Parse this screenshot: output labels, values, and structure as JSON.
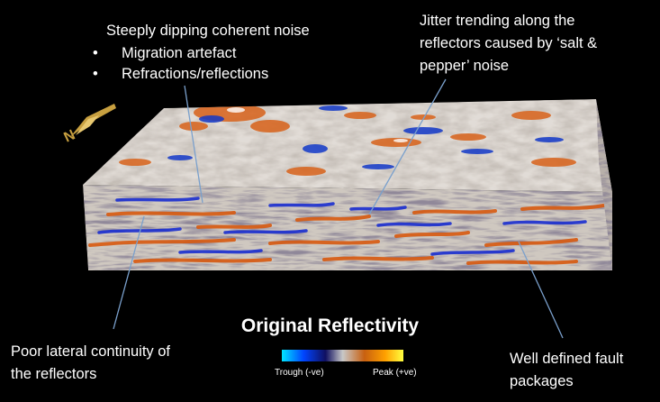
{
  "annotations": {
    "top_left_heading": "Steeply dipping  coherent noise",
    "top_left_bullets": [
      "Migration artefact",
      "Refractions/reflections"
    ],
    "top_right": [
      "Jitter trending along the",
      "reflectors caused by ‘salt &",
      "pepper’ noise"
    ],
    "bottom_left": [
      "Poor lateral continuity of",
      "the reflectors"
    ],
    "bottom_right": [
      "Well defined fault",
      "packages"
    ]
  },
  "title": "Original Reflectivity",
  "colorbar": {
    "left_label": "Trough (-ve)",
    "right_label": "Peak (+ve)",
    "colors": [
      "#00e5ff",
      "#0044ff",
      "#101060",
      "#c8c8c8",
      "#c86010",
      "#ffa000",
      "#ffff40"
    ]
  },
  "north_arrow": {
    "letter": "N",
    "color": "#c8a040"
  },
  "colors": {
    "pointer_line": "#7aa0cc",
    "trough": "#1030d0",
    "peak": "#d85a10",
    "noise_light": "#d8d2c8",
    "noise_mid": "#a49c98"
  }
}
